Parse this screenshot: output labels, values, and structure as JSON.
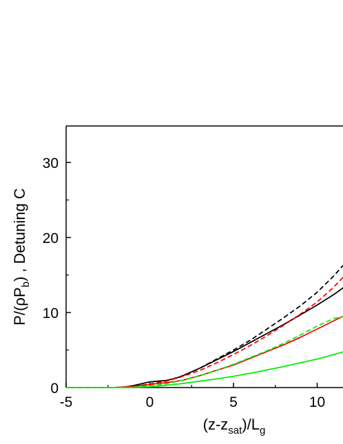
{
  "chart_data": {
    "type": "line",
    "title": "",
    "xlabel": {
      "main": "(z-z",
      "sub1": "sat",
      "mid": ")/L",
      "sub2": "g"
    },
    "ylabel": {
      "pre": "P/(ρP",
      "sub": "b",
      "post": ") , Detuning C"
    },
    "xlim": [
      -5,
      11.8
    ],
    "ylim": [
      0,
      35
    ],
    "xticks": [
      -5,
      0,
      5,
      10
    ],
    "yticks": [
      0,
      10,
      20,
      30
    ],
    "grid": false,
    "legend": "none",
    "series": [
      {
        "color": "#000000",
        "dash": "solid",
        "x": [
          -5,
          -3,
          -2,
          -1.5,
          -1,
          -0.5,
          0,
          0.5,
          1,
          1.5,
          2,
          3,
          4,
          5,
          6,
          7,
          8,
          9,
          10,
          11,
          11.8
        ],
        "y": [
          0,
          0,
          0.02,
          0.08,
          0.25,
          0.5,
          0.75,
          0.85,
          0.95,
          1.2,
          1.6,
          2.6,
          3.7,
          4.8,
          6.0,
          7.2,
          8.4,
          9.7,
          11.0,
          12.4,
          13.7
        ]
      },
      {
        "color": "#000000",
        "dash": "dashed",
        "x": [
          -5,
          -3,
          -2,
          -1,
          0,
          1,
          2,
          3,
          4,
          5,
          6,
          7,
          8,
          9,
          10,
          11,
          11.8
        ],
        "y": [
          0,
          0,
          0.02,
          0.15,
          0.45,
          0.9,
          1.6,
          2.6,
          3.8,
          5.0,
          6.3,
          7.8,
          9.3,
          10.9,
          12.7,
          14.9,
          16.9
        ]
      },
      {
        "color": "#ff0000",
        "dash": "solid",
        "x": [
          -5,
          -3,
          -2,
          -1,
          0,
          0.5,
          1,
          1.5,
          2,
          3,
          4,
          5,
          6,
          7,
          8,
          9,
          10,
          11,
          11.8
        ],
        "y": [
          0,
          0,
          0.02,
          0.15,
          0.4,
          0.55,
          0.65,
          0.8,
          1.0,
          1.6,
          2.3,
          3.0,
          3.9,
          4.8,
          5.7,
          6.7,
          7.8,
          8.9,
          9.8
        ]
      },
      {
        "color": "#ff0000",
        "dash": "dashed",
        "x": [
          -5,
          -3,
          -2,
          -1,
          0,
          1,
          2,
          3,
          4,
          5,
          6,
          7,
          8,
          9,
          10,
          11,
          11.8
        ],
        "y": [
          0,
          0,
          0.02,
          0.12,
          0.4,
          0.85,
          1.5,
          2.3,
          3.3,
          4.4,
          5.6,
          6.9,
          8.3,
          9.8,
          11.4,
          13.4,
          15.3
        ]
      },
      {
        "color": "#00ee00",
        "dash": "solid",
        "x": [
          -5,
          -3,
          -2,
          -1,
          0,
          1,
          2,
          3,
          4,
          5,
          6,
          7,
          8,
          9,
          10,
          11,
          11.8
        ],
        "y": [
          0,
          0,
          0,
          0.02,
          0.1,
          0.3,
          0.55,
          0.85,
          1.15,
          1.5,
          1.9,
          2.35,
          2.8,
          3.3,
          3.8,
          4.4,
          4.9
        ]
      },
      {
        "color": "#00ee00",
        "dash": "dashed",
        "x": [
          -5,
          -3,
          -2,
          -1,
          0,
          1,
          2,
          3,
          4,
          5,
          6,
          7,
          8,
          9,
          10,
          11,
          11.8
        ],
        "y": [
          0,
          0,
          0,
          0.05,
          0.2,
          0.5,
          1.0,
          1.6,
          2.3,
          3.1,
          4.0,
          4.9,
          5.9,
          7.0,
          8.2,
          9.2,
          9.6
        ]
      }
    ]
  }
}
